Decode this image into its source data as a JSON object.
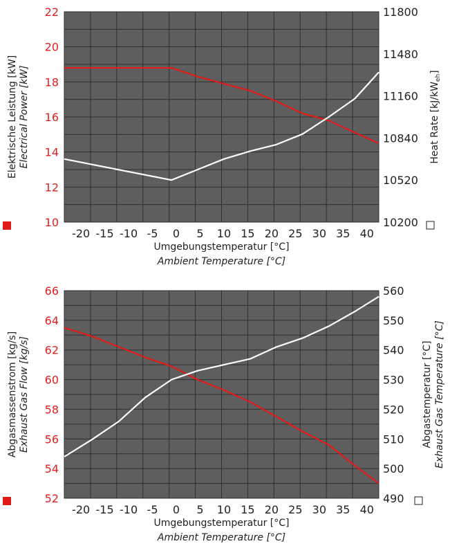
{
  "colors": {
    "plot_bg": "#5e5e5e",
    "grid": "#2e2e2e",
    "left_axis": "#e02020",
    "right_axis": "#222222",
    "series_red": "#e01b1b",
    "series_white": "#ffffff"
  },
  "chart_data": [
    {
      "type": "line",
      "x_ticks": [
        "-20",
        "-15",
        "-10",
        "-5",
        "0",
        "5",
        "10",
        "15",
        "20",
        "25",
        "30",
        "35",
        "40"
      ],
      "xlabel": "Umgebungstemperatur [°C]",
      "xlabel_en": "Ambient Temperature [°C]",
      "xlim": [
        -23.5,
        42.5
      ],
      "ylim_left": [
        10,
        22
      ],
      "ylim_right": [
        10200,
        11800
      ],
      "yticks_left": [
        "10",
        "12",
        "14",
        "16",
        "18",
        "20",
        "22"
      ],
      "yticks_right": [
        "10200",
        "10520",
        "10840",
        "11160",
        "11480",
        "11800"
      ],
      "ylabel_left": "Elektrische Leistung [kW]",
      "ylabel_left_en": "Electrical Power [kW]",
      "ylabel_right": "Heat Rate [kJ/kW",
      "ylabel_right_sub": "eh",
      "ylabel_right_end": "]",
      "grid": true,
      "series": [
        {
          "axis": "left",
          "color": "#e01b1b",
          "points": [
            [
              -23.5,
              18.8
            ],
            [
              -1,
              18.8
            ],
            [
              4.5,
              18.3
            ],
            [
              10,
              17.9
            ],
            [
              15.5,
              17.5
            ],
            [
              21,
              16.9
            ],
            [
              26.5,
              16.2
            ],
            [
              32,
              15.8
            ],
            [
              37.5,
              15.1
            ],
            [
              42.5,
              14.5
            ]
          ]
        },
        {
          "axis": "right",
          "color": "#ffffff",
          "points": [
            [
              -23.5,
              10680
            ],
            [
              -1,
              10520
            ],
            [
              4.5,
              10600
            ],
            [
              10,
              10680
            ],
            [
              15.5,
              10740
            ],
            [
              21,
              10790
            ],
            [
              26.5,
              10870
            ],
            [
              32,
              11000
            ],
            [
              37.5,
              11140
            ],
            [
              42.5,
              11340
            ]
          ]
        }
      ]
    },
    {
      "type": "line",
      "x_ticks": [
        "-20",
        "-15",
        "-10",
        "-5",
        "0",
        "5",
        "10",
        "15",
        "20",
        "25",
        "30",
        "35",
        "40"
      ],
      "xlabel": "Umgebungstemperatur [°C]",
      "xlabel_en": "Ambient Temperature [°C]",
      "xlim": [
        -23.5,
        42.5
      ],
      "ylim_left": [
        52,
        66
      ],
      "ylim_right": [
        490,
        560
      ],
      "yticks_left": [
        "52",
        "54",
        "56",
        "58",
        "60",
        "62",
        "64",
        "66"
      ],
      "yticks_right": [
        "490",
        "500",
        "510",
        "520",
        "530",
        "540",
        "550",
        "560"
      ],
      "ylabel_left": "Abgasmassenstrom [kg/s]",
      "ylabel_left_en": "Exhaust Gas Flow [kg/s]",
      "ylabel_right": "Abgastemperatur [°C]",
      "ylabel_right_en": "Exhaust Gas Temperature [°C]",
      "grid": true,
      "series": [
        {
          "axis": "left",
          "color": "#e01b1b",
          "points": [
            [
              -23.5,
              63.5
            ],
            [
              -17.5,
              62.9
            ],
            [
              -12,
              62.2
            ],
            [
              -6.5,
              61.5
            ],
            [
              -1,
              60.9
            ],
            [
              4.5,
              60.0
            ],
            [
              10,
              59.3
            ],
            [
              15.5,
              58.5
            ],
            [
              21,
              57.5
            ],
            [
              26.5,
              56.5
            ],
            [
              32,
              55.6
            ],
            [
              37.5,
              54.2
            ],
            [
              42.5,
              53.0
            ]
          ]
        },
        {
          "axis": "right",
          "color": "#ffffff",
          "points": [
            [
              -23.5,
              504
            ],
            [
              -17.5,
              510
            ],
            [
              -12,
              516
            ],
            [
              -6.5,
              524
            ],
            [
              -1,
              530
            ],
            [
              4.5,
              533
            ],
            [
              10,
              535
            ],
            [
              15.5,
              537
            ],
            [
              21,
              541
            ],
            [
              26.5,
              544
            ],
            [
              32,
              548
            ],
            [
              37.5,
              553
            ],
            [
              42.5,
              558
            ]
          ]
        }
      ]
    }
  ]
}
